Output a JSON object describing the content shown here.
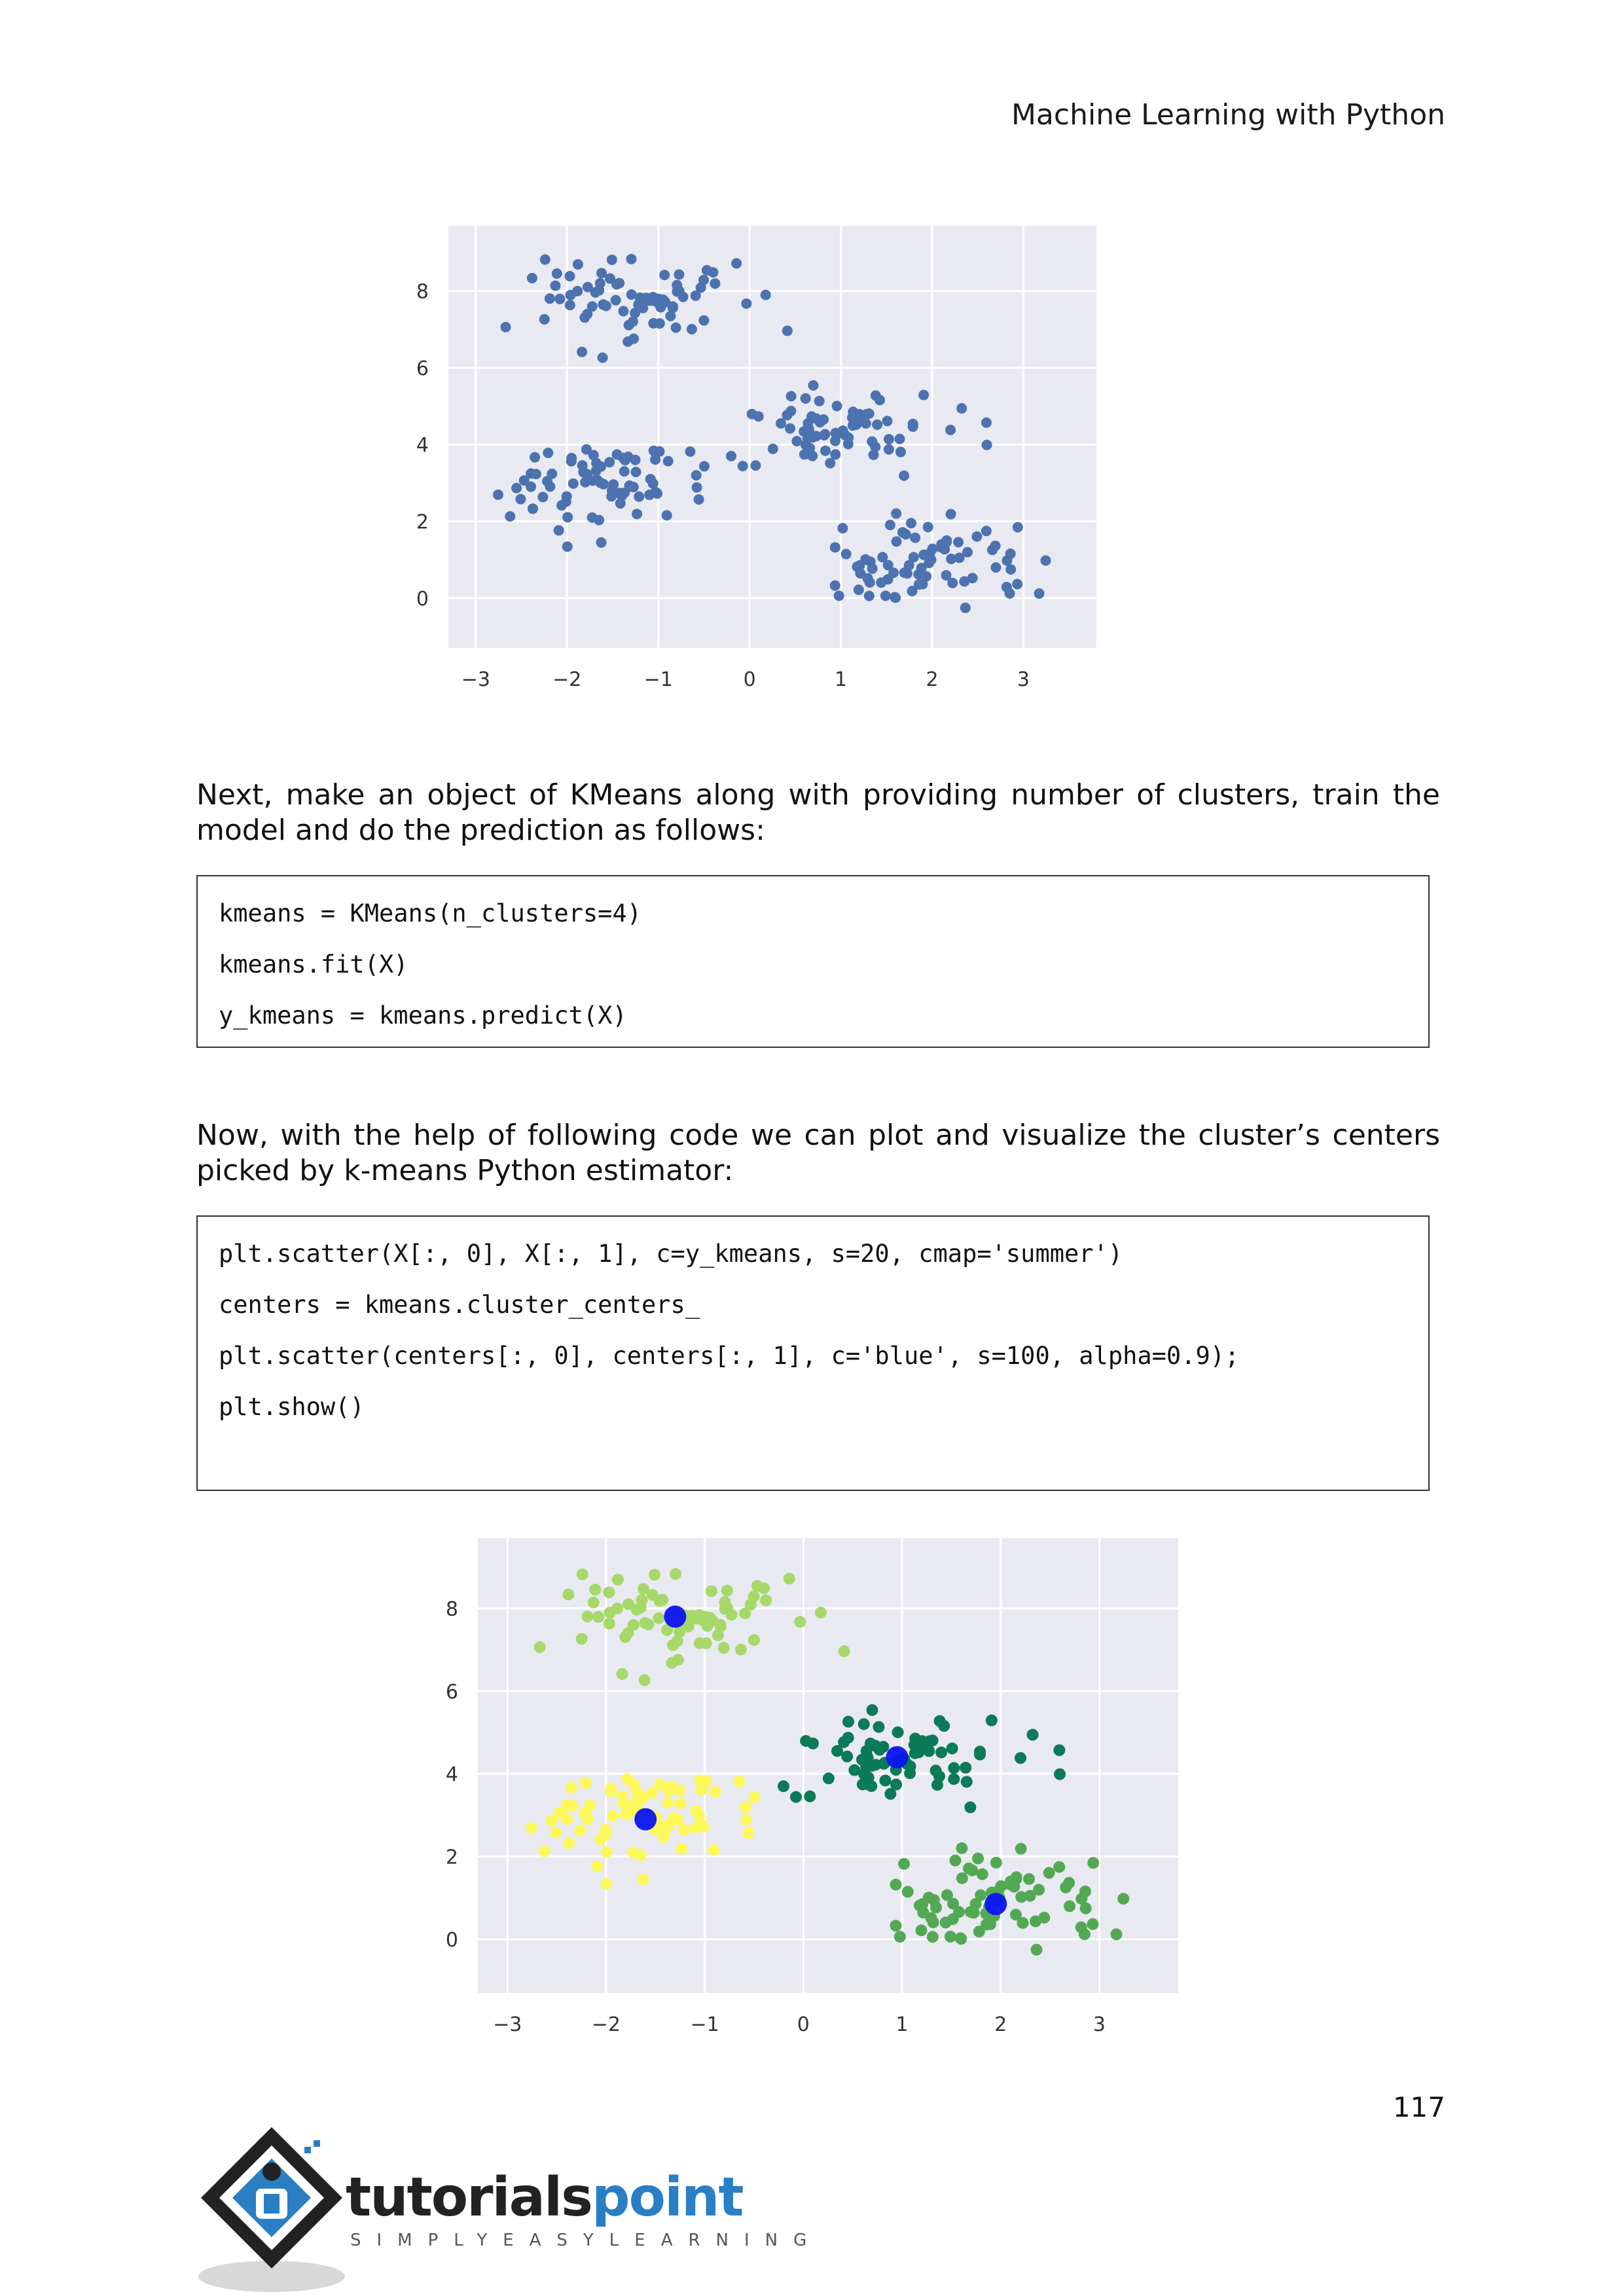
{
  "header": {
    "title": "Machine Learning with Python"
  },
  "paragraphs": {
    "p1": "Next, make an object of KMeans along with providing number of clusters, train the model and do the prediction as follows:",
    "p2": "Now, with the help of following code we can plot and visualize the cluster’s centers picked by k-means Python estimator:"
  },
  "code_blocks": [
    {
      "lines": [
        "kmeans = KMeans(n_clusters=4)",
        "kmeans.fit(X)",
        "y_kmeans = kmeans.predict(X)"
      ]
    },
    {
      "lines": [
        "plt.scatter(X[:, 0], X[:, 1], c=y_kmeans, s=20, cmap='summer')",
        "centers = kmeans.cluster_centers_",
        "plt.scatter(centers[:, 0], centers[:, 1], c='blue', s=100, alpha=0.9);",
        "plt.show()"
      ]
    }
  ],
  "page_number": "117",
  "logo": {
    "word_main": "tutorials",
    "word_accent": "point",
    "tagline": "SIMPLYEASYLEARNING",
    "colors": {
      "dark": "#222222",
      "accent": "#2a7fc4"
    }
  },
  "chart_data": [
    {
      "type": "scatter",
      "title": "",
      "xlabel": "",
      "ylabel": "",
      "xlim": [
        -3.3,
        3.8
      ],
      "ylim": [
        -1.3,
        9.7
      ],
      "xticks": [
        "−3",
        "−2",
        "−1",
        "0",
        "1",
        "2",
        "3"
      ],
      "yticks": [
        "0",
        "2",
        "4",
        "6",
        "8"
      ],
      "grid": true,
      "background": "#e9e9f2",
      "series": [
        {
          "color": "#4c72b0",
          "cluster_centers": [
            [
              -1.3,
              7.8
            ],
            [
              -1.6,
              2.9
            ],
            [
              0.9,
              4.4
            ],
            [
              1.9,
              0.9
            ]
          ],
          "spread": [
            0.55,
            0.55
          ],
          "points_per_cluster": 75
        }
      ]
    },
    {
      "type": "scatter",
      "title": "",
      "xlabel": "",
      "ylabel": "",
      "xlim": [
        -3.3,
        3.8
      ],
      "ylim": [
        -1.3,
        9.7
      ],
      "xticks": [
        "−3",
        "−2",
        "−1",
        "0",
        "1",
        "2",
        "3"
      ],
      "yticks": [
        "0",
        "2",
        "4",
        "6",
        "8"
      ],
      "grid": true,
      "background": "#e9e9f2",
      "series": [
        {
          "color": "#a6d96a",
          "cluster_center": [
            -1.3,
            7.8
          ],
          "spread": [
            0.55,
            0.55
          ],
          "points": 75
        },
        {
          "color": "#fdf85a",
          "cluster_center": [
            -1.6,
            2.9
          ],
          "spread": [
            0.55,
            0.55
          ],
          "points": 75
        },
        {
          "color": "#0b7a57",
          "cluster_center": [
            0.9,
            4.4
          ],
          "spread": [
            0.55,
            0.55
          ],
          "points": 75
        },
        {
          "color": "#53a953",
          "cluster_center": [
            1.9,
            0.9
          ],
          "spread": [
            0.55,
            0.55
          ],
          "points": 75
        }
      ],
      "centers": {
        "color": "#0a14f2",
        "points": [
          [
            -1.3,
            7.8
          ],
          [
            -1.6,
            2.9
          ],
          [
            0.95,
            4.4
          ],
          [
            1.95,
            0.85
          ]
        ]
      }
    }
  ]
}
